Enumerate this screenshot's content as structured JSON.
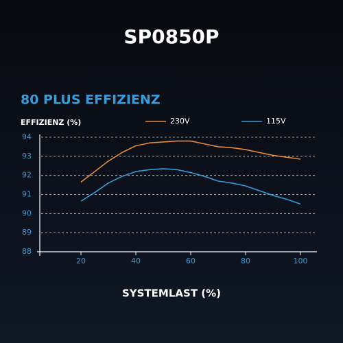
{
  "chart_data": {
    "type": "line",
    "title": "SP0850P",
    "subtitle": "80 PLUS EFFIZIENZ",
    "y_label": "EFFIZIENZ (%)",
    "x_label": "SYSTEMLAST (%)",
    "x": [
      20,
      25,
      30,
      35,
      40,
      45,
      50,
      55,
      60,
      65,
      70,
      75,
      80,
      85,
      90,
      95,
      100
    ],
    "series": [
      {
        "name": "230V",
        "color": "#e8893c",
        "values": [
          91.65,
          92.2,
          92.75,
          93.2,
          93.55,
          93.7,
          93.75,
          93.8,
          93.8,
          93.65,
          93.5,
          93.45,
          93.35,
          93.2,
          93.05,
          92.95,
          92.85
        ]
      },
      {
        "name": "115V",
        "color": "#3a9bd9",
        "values": [
          90.65,
          91.1,
          91.6,
          91.95,
          92.2,
          92.3,
          92.35,
          92.3,
          92.15,
          91.95,
          91.7,
          91.6,
          91.45,
          91.2,
          90.95,
          90.75,
          90.5
        ]
      }
    ],
    "xlim": [
      5,
      106
    ],
    "xticks": [
      20,
      40,
      60,
      80,
      100
    ],
    "ylim": [
      88,
      94
    ],
    "yticks": [
      88,
      89,
      90,
      91,
      92,
      93,
      94
    ],
    "grid": true
  }
}
